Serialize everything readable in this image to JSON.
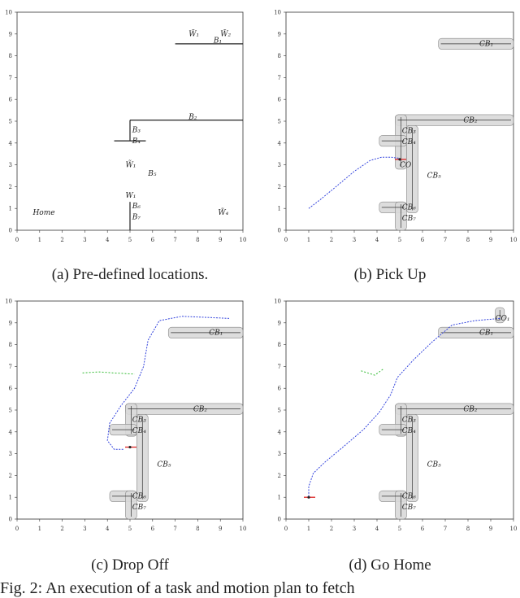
{
  "captions": {
    "a": "(a) Pre-defined locations.",
    "b": "(b) Pick Up",
    "c": "(c) Drop Off",
    "d": "(d) Go Home",
    "figure": "Fig. 2: An execution of a task and motion plan to fetch"
  },
  "chart_data": [
    {
      "type": "line",
      "caption": "(a) Pre-defined locations.",
      "xlim": [
        0,
        10
      ],
      "ylim": [
        0,
        10
      ],
      "xticks": [
        0,
        1,
        2,
        3,
        4,
        5,
        6,
        7,
        8,
        9,
        10
      ],
      "yticks": [
        0,
        1,
        2,
        3,
        4,
        5,
        6,
        7,
        8,
        9,
        10
      ],
      "walls": [
        {
          "x1": 7,
          "y1": 8.55,
          "x2": 10,
          "y2": 8.55
        },
        {
          "x1": 5,
          "y1": 5.05,
          "x2": 10,
          "y2": 5.05
        },
        {
          "x1": 5,
          "y1": 5.05,
          "x2": 5,
          "y2": 4.1
        },
        {
          "x1": 4.3,
          "y1": 4.1,
          "x2": 5.7,
          "y2": 4.1
        },
        {
          "x1": 5,
          "y1": 1.3,
          "x2": 5,
          "y2": 0
        }
      ],
      "labels": [
        {
          "text": "B₁",
          "x": 8.7,
          "y": 8.6
        },
        {
          "text": "B₂",
          "x": 7.6,
          "y": 5.1
        },
        {
          "text": "B₃",
          "x": 5.1,
          "y": 4.5
        },
        {
          "text": "B₄",
          "x": 5.1,
          "y": 4.0
        },
        {
          "text": "B₅",
          "x": 5.8,
          "y": 2.5
        },
        {
          "text": "B₆",
          "x": 5.1,
          "y": 1.0
        },
        {
          "text": "B₇",
          "x": 5.1,
          "y": 0.5
        },
        {
          "text": "W₁",
          "x": 4.8,
          "y": 1.5
        },
        {
          "text": "W̃₁",
          "x": 7.6,
          "y": 8.9
        },
        {
          "text": "W̃₂",
          "x": 9.0,
          "y": 8.9
        },
        {
          "text": "W̃₁",
          "x": 4.8,
          "y": 2.9
        },
        {
          "text": "W̃₄",
          "x": 8.9,
          "y": 0.7
        },
        {
          "text": "Home",
          "x": 0.7,
          "y": 0.7
        }
      ]
    },
    {
      "type": "line",
      "caption": "(b) Pick Up",
      "xlim": [
        0,
        10
      ],
      "ylim": [
        0,
        10
      ],
      "xticks": [
        0,
        1,
        2,
        3,
        4,
        5,
        6,
        7,
        8,
        9,
        10
      ],
      "yticks": [
        0,
        1,
        2,
        3,
        4,
        5,
        6,
        7,
        8,
        9,
        10
      ],
      "regions": [
        {
          "x1": 6.7,
          "y1": 8.3,
          "x2": 10,
          "y2": 8.8
        },
        {
          "x1": 4.8,
          "y1": 4.8,
          "x2": 10,
          "y2": 5.3
        },
        {
          "x1": 4.8,
          "y1": 2.8,
          "x2": 5.3,
          "y2": 5.3
        },
        {
          "x1": 4.1,
          "y1": 3.85,
          "x2": 5.3,
          "y2": 4.35
        },
        {
          "x1": 5.3,
          "y1": 0.8,
          "x2": 5.8,
          "y2": 4.8
        },
        {
          "x1": 4.1,
          "y1": 0.8,
          "x2": 5.3,
          "y2": 1.3
        },
        {
          "x1": 4.8,
          "y1": 0,
          "x2": 5.3,
          "y2": 1.3
        }
      ],
      "labels": [
        {
          "text": "CB₁",
          "x": 8.5,
          "y": 8.45
        },
        {
          "text": "CB₂",
          "x": 7.8,
          "y": 4.95
        },
        {
          "text": "CB₃",
          "x": 5.1,
          "y": 4.45
        },
        {
          "text": "CB₄",
          "x": 5.1,
          "y": 3.95
        },
        {
          "text": "CO",
          "x": 5.0,
          "y": 2.9
        },
        {
          "text": "CB₅",
          "x": 6.2,
          "y": 2.4
        },
        {
          "text": "CB₆",
          "x": 5.1,
          "y": 0.95
        },
        {
          "text": "CB₇",
          "x": 5.1,
          "y": 0.45
        }
      ],
      "path": [
        [
          1.0,
          1.0
        ],
        [
          1.5,
          1.4
        ],
        [
          2.2,
          2.0
        ],
        [
          3.0,
          2.7
        ],
        [
          3.7,
          3.2
        ],
        [
          4.2,
          3.35
        ],
        [
          4.6,
          3.35
        ],
        [
          5.0,
          3.3
        ]
      ],
      "robot": {
        "x": 5.0,
        "y": 3.25
      }
    },
    {
      "type": "line",
      "caption": "(c) Drop Off",
      "xlim": [
        0,
        10
      ],
      "ylim": [
        0,
        10
      ],
      "xticks": [
        0,
        1,
        2,
        3,
        4,
        5,
        6,
        7,
        8,
        9,
        10
      ],
      "yticks": [
        0,
        1,
        2,
        3,
        4,
        5,
        6,
        7,
        8,
        9,
        10
      ],
      "regions": [
        {
          "x1": 6.7,
          "y1": 8.3,
          "x2": 10,
          "y2": 8.8
        },
        {
          "x1": 4.8,
          "y1": 4.8,
          "x2": 10,
          "y2": 5.3
        },
        {
          "x1": 4.8,
          "y1": 3.8,
          "x2": 5.3,
          "y2": 5.3
        },
        {
          "x1": 4.1,
          "y1": 3.85,
          "x2": 5.3,
          "y2": 4.35
        },
        {
          "x1": 5.3,
          "y1": 0.8,
          "x2": 5.8,
          "y2": 4.8
        },
        {
          "x1": 4.1,
          "y1": 0.8,
          "x2": 5.3,
          "y2": 1.3
        },
        {
          "x1": 4.8,
          "y1": 0,
          "x2": 5.3,
          "y2": 1.3
        }
      ],
      "labels": [
        {
          "text": "CB₁",
          "x": 8.5,
          "y": 8.45
        },
        {
          "text": "CB₂",
          "x": 7.8,
          "y": 4.95
        },
        {
          "text": "CB₃",
          "x": 5.1,
          "y": 4.45
        },
        {
          "text": "CB₄",
          "x": 5.1,
          "y": 3.95
        },
        {
          "text": "CB₅",
          "x": 6.2,
          "y": 2.4
        },
        {
          "text": "CB₆",
          "x": 5.1,
          "y": 0.95
        },
        {
          "text": "CB₇",
          "x": 5.1,
          "y": 0.45
        }
      ],
      "path": [
        [
          4.7,
          3.2
        ],
        [
          4.3,
          3.2
        ],
        [
          4.0,
          3.6
        ],
        [
          4.1,
          4.4
        ],
        [
          4.6,
          5.2
        ],
        [
          5.2,
          6.0
        ],
        [
          5.6,
          7.0
        ],
        [
          5.8,
          8.2
        ],
        [
          6.3,
          9.1
        ],
        [
          7.3,
          9.3
        ],
        [
          8.4,
          9.25
        ],
        [
          9.4,
          9.2
        ]
      ],
      "green_path": [
        [
          2.9,
          6.7
        ],
        [
          3.6,
          6.75
        ],
        [
          4.3,
          6.7
        ],
        [
          5.2,
          6.65
        ]
      ],
      "robot": {
        "x": 5.0,
        "y": 3.3
      }
    },
    {
      "type": "line",
      "caption": "(d) Go Home",
      "xlim": [
        0,
        10
      ],
      "ylim": [
        0,
        10
      ],
      "xticks": [
        0,
        1,
        2,
        3,
        4,
        5,
        6,
        7,
        8,
        9,
        10
      ],
      "yticks": [
        0,
        1,
        2,
        3,
        4,
        5,
        6,
        7,
        8,
        9,
        10
      ],
      "regions": [
        {
          "x1": 9.2,
          "y1": 9.0,
          "x2": 9.6,
          "y2": 9.7
        },
        {
          "x1": 6.7,
          "y1": 8.3,
          "x2": 10,
          "y2": 8.8
        },
        {
          "x1": 4.8,
          "y1": 4.8,
          "x2": 10,
          "y2": 5.3
        },
        {
          "x1": 4.8,
          "y1": 3.8,
          "x2": 5.3,
          "y2": 5.3
        },
        {
          "x1": 4.1,
          "y1": 3.85,
          "x2": 5.3,
          "y2": 4.35
        },
        {
          "x1": 5.3,
          "y1": 0.8,
          "x2": 5.8,
          "y2": 4.8
        },
        {
          "x1": 4.1,
          "y1": 0.8,
          "x2": 5.3,
          "y2": 1.3
        },
        {
          "x1": 4.8,
          "y1": 0,
          "x2": 5.3,
          "y2": 1.3
        }
      ],
      "labels": [
        {
          "text": "CO₁",
          "x": 9.2,
          "y": 9.1
        },
        {
          "text": "CB₁",
          "x": 8.5,
          "y": 8.45
        },
        {
          "text": "CB₂",
          "x": 7.8,
          "y": 4.95
        },
        {
          "text": "CB₃",
          "x": 5.1,
          "y": 4.45
        },
        {
          "text": "CB₄",
          "x": 5.1,
          "y": 3.95
        },
        {
          "text": "CB₅",
          "x": 6.2,
          "y": 2.4
        },
        {
          "text": "CB₆",
          "x": 5.1,
          "y": 0.95
        },
        {
          "text": "CB₇",
          "x": 5.1,
          "y": 0.45
        }
      ],
      "path": [
        [
          9.4,
          9.2
        ],
        [
          8.3,
          9.1
        ],
        [
          7.3,
          8.9
        ],
        [
          6.4,
          8.1
        ],
        [
          5.6,
          7.3
        ],
        [
          4.9,
          6.5
        ],
        [
          4.6,
          5.7
        ],
        [
          4.1,
          4.9
        ],
        [
          3.4,
          4.1
        ],
        [
          2.5,
          3.3
        ],
        [
          1.7,
          2.6
        ],
        [
          1.2,
          2.1
        ],
        [
          1.0,
          1.5
        ],
        [
          1.0,
          1.05
        ]
      ],
      "green_path": [
        [
          3.3,
          6.8
        ],
        [
          3.9,
          6.6
        ],
        [
          4.3,
          6.9
        ]
      ],
      "robot": {
        "x": 1.0,
        "y": 1.0
      }
    }
  ]
}
